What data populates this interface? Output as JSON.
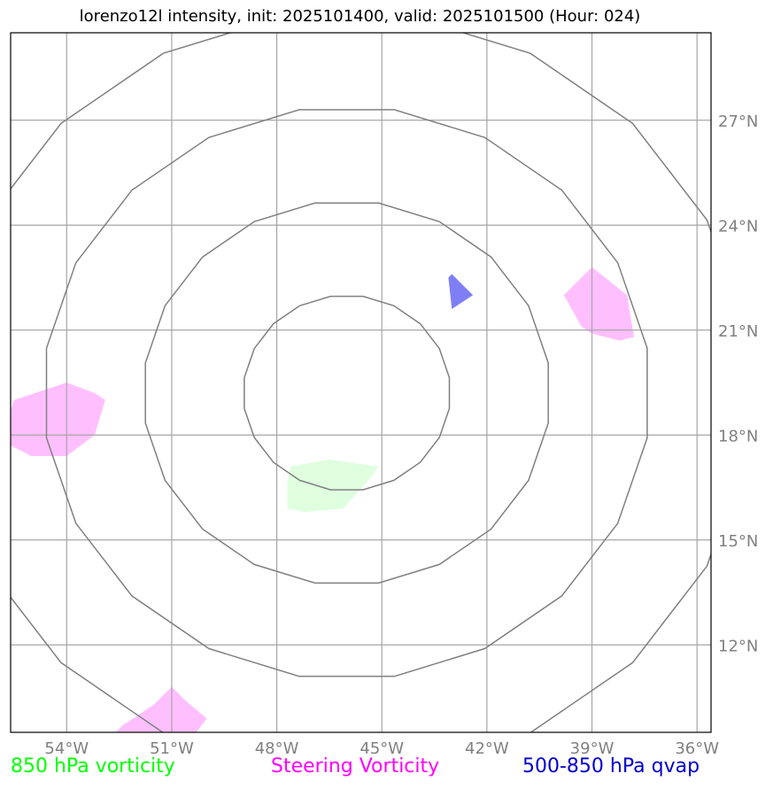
{
  "title": "lorenzo12l intensity, init: 2025101400, valid: 2025101500 (Hour: 024)",
  "legend": [
    {
      "label": "850 hPa vorticity",
      "color": "#00ff00"
    },
    {
      "label": "Steering Vorticity",
      "color": "#ff00ff"
    },
    {
      "label": "500-850 hPa qvap",
      "color": "#0000cc"
    }
  ],
  "chart_data": {
    "type": "map",
    "projection": "lon-lat",
    "xlim": [
      -55.6,
      -35.6
    ],
    "ylim": [
      9.5,
      29.5
    ],
    "lon_ticks": [
      {
        "value": -54,
        "label": "54°W"
      },
      {
        "value": -51,
        "label": "51°W"
      },
      {
        "value": -48,
        "label": "48°W"
      },
      {
        "value": -45,
        "label": "45°W"
      },
      {
        "value": -42,
        "label": "42°W"
      },
      {
        "value": -39,
        "label": "39°W"
      },
      {
        "value": -36,
        "label": "36°W"
      }
    ],
    "lat_ticks": [
      {
        "value": 12,
        "label": "12°N"
      },
      {
        "value": 15,
        "label": "15°N"
      },
      {
        "value": 18,
        "label": "18°N"
      },
      {
        "value": 21,
        "label": "21°N"
      },
      {
        "value": 24,
        "label": "24°N"
      },
      {
        "value": 27,
        "label": "27°N"
      }
    ],
    "grid": true,
    "range_rings": {
      "center": [
        -46.0,
        19.2
      ],
      "radii_deg_lat": [
        2.8,
        5.5,
        8.2,
        10.9
      ],
      "color": "#808080"
    },
    "shapes": [
      {
        "field": "850 hPa vorticity",
        "color": "#dfffdf",
        "points": [
          [
            -47.7,
            16.6
          ],
          [
            -47.6,
            17.1
          ],
          [
            -46.5,
            17.3
          ],
          [
            -45.1,
            17.1
          ],
          [
            -45.3,
            16.8
          ],
          [
            -46.1,
            15.9
          ],
          [
            -47.2,
            15.8
          ],
          [
            -47.7,
            15.9
          ]
        ]
      },
      {
        "field": "Steering Vorticity",
        "color": "#ffbfff",
        "points": [
          [
            -55.6,
            18.7
          ],
          [
            -55.5,
            19.0
          ],
          [
            -54.6,
            19.3
          ],
          [
            -54.0,
            19.5
          ],
          [
            -53.2,
            19.2
          ],
          [
            -52.9,
            19.0
          ],
          [
            -53.2,
            18.0
          ],
          [
            -54.0,
            17.4
          ],
          [
            -55.0,
            17.4
          ],
          [
            -55.6,
            17.7
          ]
        ]
      },
      {
        "field": "Steering Vorticity",
        "color": "#ffbfff",
        "points": [
          [
            -39.8,
            22.0
          ],
          [
            -39.0,
            22.8
          ],
          [
            -38.0,
            22.0
          ],
          [
            -37.8,
            20.8
          ],
          [
            -38.2,
            20.7
          ],
          [
            -39.0,
            20.9
          ],
          [
            -39.3,
            21.1
          ]
        ]
      },
      {
        "field": "Steering Vorticity",
        "color": "#ffbfff",
        "points": [
          [
            -52.6,
            9.5
          ],
          [
            -52.4,
            9.7
          ],
          [
            -51.5,
            10.3
          ],
          [
            -51.0,
            10.8
          ],
          [
            -50.6,
            10.4
          ],
          [
            -50.0,
            9.9
          ],
          [
            -50.3,
            9.5
          ]
        ]
      },
      {
        "field": "500-850 hPa qvap",
        "color": "#7f7ff5",
        "points": [
          [
            -43.1,
            22.5
          ],
          [
            -43.0,
            22.6
          ],
          [
            -42.4,
            22.0
          ],
          [
            -43.0,
            21.6
          ]
        ]
      }
    ]
  }
}
